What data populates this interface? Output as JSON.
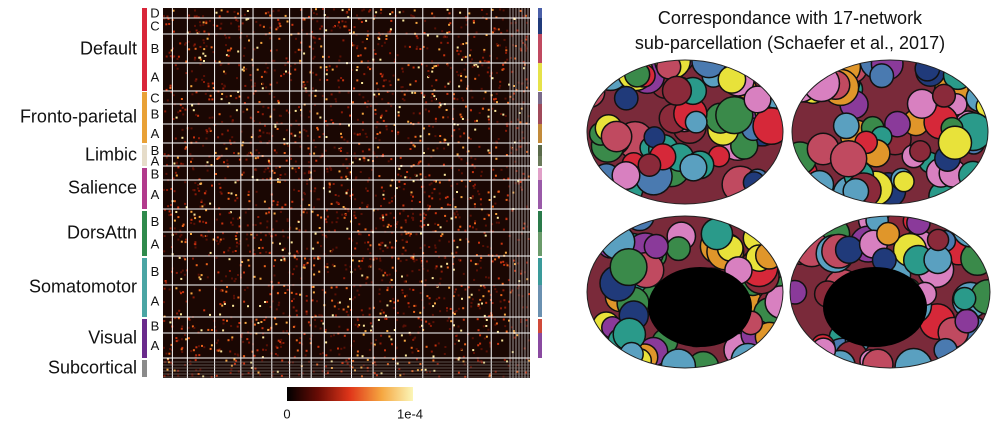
{
  "networks": [
    {
      "label": "Default",
      "subnetworks": [
        "D",
        "C",
        "B",
        "A"
      ]
    },
    {
      "label": "Fronto-parietal",
      "subnetworks": [
        "C",
        "B",
        "A"
      ]
    },
    {
      "label": "Limbic",
      "subnetworks": [
        "B",
        "A"
      ]
    },
    {
      "label": "Salience",
      "subnetworks": [
        "B",
        "A"
      ]
    },
    {
      "label": "DorsAttn",
      "subnetworks": [
        "B",
        "A"
      ]
    },
    {
      "label": "Somatomotor",
      "subnetworks": [
        "B",
        "A"
      ]
    },
    {
      "label": "Visual",
      "subnetworks": [
        "B",
        "A"
      ]
    },
    {
      "label": "Subcortical"
    }
  ],
  "colorbar": {
    "min_label": "0",
    "max_label": "1e-4"
  },
  "title": {
    "line1": "Correspondance with 17-network",
    "line2": "sub-parcellation (Schaefer et al., 2017)"
  }
}
